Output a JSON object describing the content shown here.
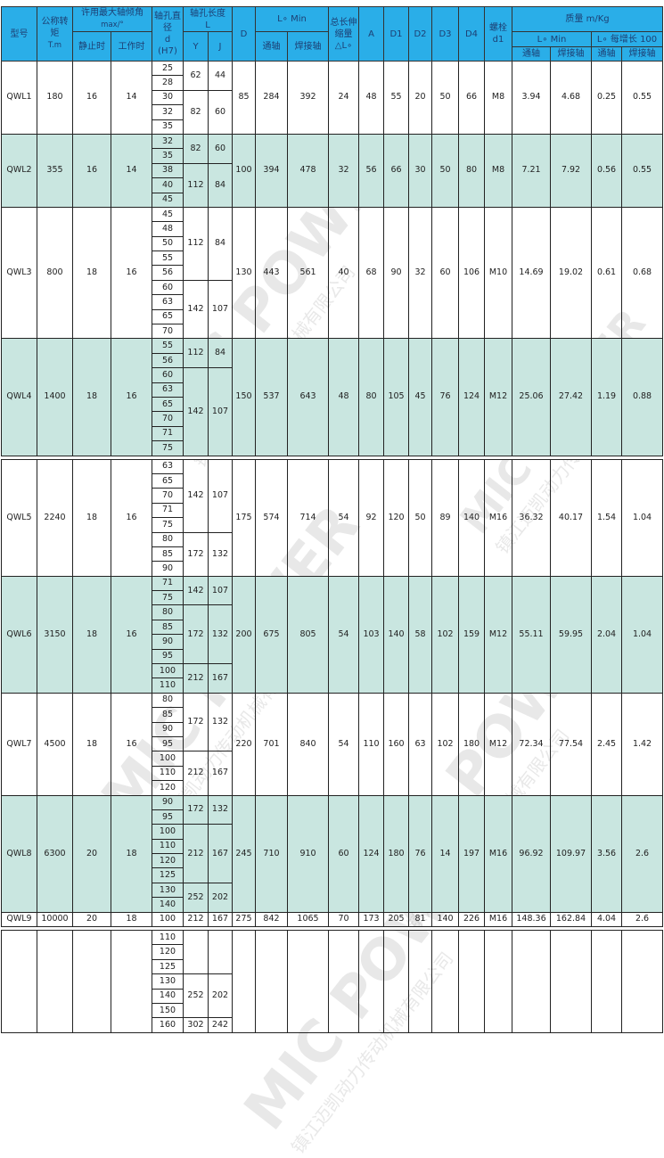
{
  "header": {
    "model": "型号",
    "torque": "公称转矩",
    "torque_unit": "T.m",
    "angle": "许用最大轴倾角",
    "angle_unit": "max/°",
    "static": "静止时",
    "working": "工作时",
    "bore": "轴孔直径",
    "bore_d": "d",
    "bore_h7": "(H7)",
    "bore_len": "轴孔长度",
    "bore_len_unit": "L",
    "Y": "Y",
    "J": "J",
    "D": "D",
    "lmin": "L∘ Min",
    "through": "通轴",
    "weld": "焊接轴",
    "dl": "总长伸缩量",
    "dl_unit": "△L∘",
    "A": "A",
    "D1": "D1",
    "D2": "D2",
    "D3": "D3",
    "D4": "D4",
    "bolt": "螺栓",
    "bolt_d1": "d1",
    "mass": "质量 m/Kg",
    "mass_lmin": "L∘ Min",
    "mass_per100": "L∘ 每增长 100",
    "m_through": "通轴",
    "m_weld": "焊接轴",
    "m_through2": "通轴",
    "m_weld2": "焊接轴"
  },
  "groups": [
    {
      "shade": false,
      "model": "QWL1",
      "torque": "180",
      "static": "16",
      "working": "14",
      "D": "85",
      "L_through": "284",
      "L_weld": "392",
      "dL": "24",
      "A": "48",
      "D1": "55",
      "D2": "20",
      "D3": "50",
      "D4": "66",
      "d1": "M8",
      "w_min_through": "3.94",
      "w_min_weld": "4.68",
      "w_100_through": "0.25",
      "w_100_weld": "0.55",
      "bores": [
        "25",
        "28",
        "30",
        "32",
        "35"
      ],
      "lengths": [
        {
          "n": 2,
          "Y": "62",
          "J": "44"
        },
        {
          "n": 3,
          "Y": "82",
          "J": "60"
        }
      ]
    },
    {
      "shade": true,
      "model": "QWL2",
      "torque": "355",
      "static": "16",
      "working": "14",
      "D": "100",
      "L_through": "394",
      "L_weld": "478",
      "dL": "32",
      "A": "56",
      "D1": "66",
      "D2": "30",
      "D3": "50",
      "D4": "80",
      "d1": "M8",
      "w_min_through": "7.21",
      "w_min_weld": "7.92",
      "w_100_through": "0.56",
      "w_100_weld": "0.55",
      "bores": [
        "32",
        "35",
        "38",
        "40",
        "45"
      ],
      "lengths": [
        {
          "n": 2,
          "Y": "82",
          "J": "60"
        },
        {
          "n": 3,
          "Y": "112",
          "J": "84"
        }
      ]
    },
    {
      "shade": false,
      "model": "QWL3",
      "torque": "800",
      "static": "18",
      "working": "16",
      "D": "130",
      "L_through": "443",
      "L_weld": "561",
      "dL": "40",
      "A": "68",
      "D1": "90",
      "D2": "32",
      "D3": "60",
      "D4": "106",
      "d1": "M10",
      "w_min_through": "14.69",
      "w_min_weld": "19.02",
      "w_100_through": "0.61",
      "w_100_weld": "0.68",
      "bores": [
        "45",
        "48",
        "50",
        "55",
        "56",
        "60",
        "63",
        "65",
        "70"
      ],
      "lengths": [
        {
          "n": 5,
          "Y": "112",
          "J": "84"
        },
        {
          "n": 4,
          "Y": "142",
          "J": "107"
        }
      ]
    },
    {
      "shade": true,
      "model": "QWL4",
      "torque": "1400",
      "static": "18",
      "working": "16",
      "D": "150",
      "L_through": "537",
      "L_weld": "643",
      "dL": "48",
      "A": "80",
      "D1": "105",
      "D2": "45",
      "D3": "76",
      "D4": "124",
      "d1": "M12",
      "w_min_through": "25.06",
      "w_min_weld": "27.42",
      "w_100_through": "1.19",
      "w_100_weld": "0.88",
      "bores": [
        "55",
        "56",
        "60",
        "63",
        "65",
        "70",
        "71",
        "75"
      ],
      "lengths": [
        {
          "n": 2,
          "Y": "112",
          "J": "84"
        },
        {
          "n": 6,
          "Y": "142",
          "J": "107"
        }
      ],
      "gap_after": true
    },
    {
      "shade": false,
      "model": "QWL5",
      "torque": "2240",
      "static": "18",
      "working": "16",
      "D": "175",
      "L_through": "574",
      "L_weld": "714",
      "dL": "54",
      "A": "92",
      "D1": "120",
      "D2": "50",
      "D3": "89",
      "D4": "140",
      "d1": "M16",
      "w_min_through": "36.32",
      "w_min_weld": "40.17",
      "w_100_through": "1.54",
      "w_100_weld": "1.04",
      "bores": [
        "63",
        "65",
        "70",
        "71",
        "75",
        "80",
        "85",
        "90"
      ],
      "lengths": [
        {
          "n": 5,
          "Y": "142",
          "J": "107"
        },
        {
          "n": 3,
          "Y": "172",
          "J": "132"
        }
      ]
    },
    {
      "shade": true,
      "model": "QWL6",
      "torque": "3150",
      "static": "18",
      "working": "16",
      "D": "200",
      "L_through": "675",
      "L_weld": "805",
      "dL": "54",
      "A": "103",
      "D1": "140",
      "D2": "58",
      "D3": "102",
      "D4": "159",
      "d1": "M12",
      "w_min_through": "55.11",
      "w_min_weld": "59.95",
      "w_100_through": "2.04",
      "w_100_weld": "1.04",
      "bores": [
        "71",
        "75",
        "80",
        "85",
        "90",
        "95",
        "100",
        "110"
      ],
      "lengths": [
        {
          "n": 2,
          "Y": "142",
          "J": "107"
        },
        {
          "n": 4,
          "Y": "172",
          "J": "132"
        },
        {
          "n": 2,
          "Y": "212",
          "J": "167"
        }
      ]
    },
    {
      "shade": false,
      "model": "QWL7",
      "torque": "4500",
      "static": "18",
      "working": "16",
      "D": "220",
      "L_through": "701",
      "L_weld": "840",
      "dL": "54",
      "A": "110",
      "D1": "160",
      "D2": "63",
      "D3": "102",
      "D4": "180",
      "d1": "M12",
      "w_min_through": "72.34",
      "w_min_weld": "77.54",
      "w_100_through": "2.45",
      "w_100_weld": "1.42",
      "bores": [
        "80",
        "85",
        "90",
        "95",
        "100",
        "110",
        "120"
      ],
      "lengths": [
        {
          "n": 4,
          "Y": "172",
          "J": "132"
        },
        {
          "n": 3,
          "Y": "212",
          "J": "167"
        }
      ]
    },
    {
      "shade": true,
      "model": "QWL8",
      "torque": "6300",
      "static": "20",
      "working": "18",
      "D": "245",
      "L_through": "710",
      "L_weld": "910",
      "dL": "60",
      "A": "124",
      "D1": "180",
      "D2": "76",
      "D3": "14",
      "D4": "197",
      "d1": "M16",
      "w_min_through": "96.92",
      "w_min_weld": "109.97",
      "w_100_through": "3.56",
      "w_100_weld": "2.6",
      "bores": [
        "90",
        "95",
        "100",
        "110",
        "120",
        "125",
        "130",
        "140"
      ],
      "lengths": [
        {
          "n": 2,
          "Y": "172",
          "J": "132"
        },
        {
          "n": 4,
          "Y": "212",
          "J": "167"
        },
        {
          "n": 2,
          "Y": "252",
          "J": "202"
        }
      ]
    },
    {
      "shade": false,
      "model": "QWL9",
      "torque": "10000",
      "static": "20",
      "working": "18",
      "D": "275",
      "L_through": "842",
      "L_weld": "1065",
      "dL": "70",
      "A": "173",
      "D1": "205",
      "D2": "81",
      "D3": "140",
      "D4": "226",
      "d1": "M16",
      "w_min_through": "148.36",
      "w_min_weld": "162.84",
      "w_100_through": "4.04",
      "w_100_weld": "2.6",
      "bores": [
        "100"
      ],
      "lengths": [
        {
          "n": 1,
          "Y": "212",
          "J": "167"
        }
      ],
      "gap_after": true
    },
    {
      "shade": false,
      "model": "",
      "torque": "",
      "static": "",
      "working": "",
      "D": "",
      "L_through": "",
      "L_weld": "",
      "dL": "",
      "A": "",
      "D1": "",
      "D2": "",
      "D3": "",
      "D4": "",
      "d1": "",
      "w_min_through": "",
      "w_min_weld": "",
      "w_100_through": "",
      "w_100_weld": "",
      "bores": [
        "110",
        "120",
        "125",
        "130",
        "140",
        "150",
        "160"
      ],
      "lengths": [
        {
          "n": 3,
          "Y": "",
          "J": ""
        },
        {
          "n": 3,
          "Y": "252",
          "J": "202"
        },
        {
          "n": 1,
          "Y": "302",
          "J": "242"
        }
      ]
    }
  ],
  "watermark": {
    "brand": "MIC POWER",
    "company": "镇江迈凯动力传动机械有限公司"
  }
}
